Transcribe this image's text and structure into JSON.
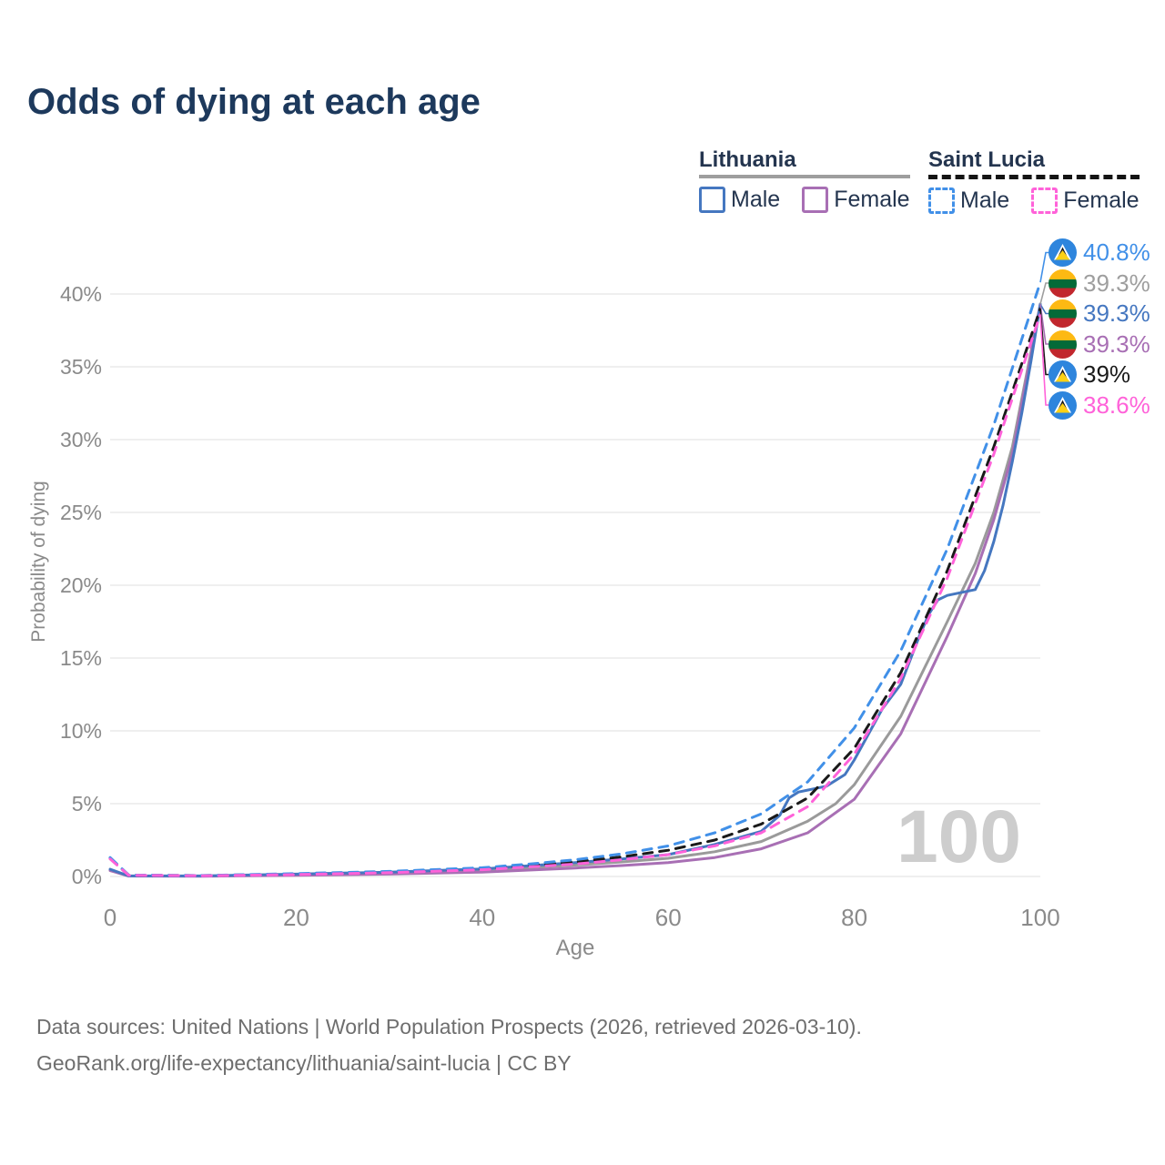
{
  "title": "Odds of dying at each age",
  "watermark": "100",
  "legend": {
    "groups": [
      {
        "country": "Lithuania",
        "line_style": "solid",
        "underline_color": "#9e9e9e",
        "items": [
          {
            "label": "Male",
            "series": "lt_male"
          },
          {
            "label": "Female",
            "series": "lt_female"
          }
        ]
      },
      {
        "country": "Saint Lucia",
        "line_style": "dashed",
        "underline_color": "#141414",
        "items": [
          {
            "label": "Male",
            "series": "sl_male"
          },
          {
            "label": "Female",
            "series": "sl_female"
          }
        ]
      }
    ]
  },
  "colors": {
    "title": "#1d395c",
    "legend_text": "#24354f",
    "axis_text": "#8a8a8a",
    "grid": "#e5e5e5",
    "watermark": "#cdcdcd",
    "footer": "#6e6e6e",
    "lt_male": "#4577c0",
    "lt_female": "#a86fb4",
    "lt_both": "#9a9a9a",
    "sl_male": "#4190e8",
    "sl_female": "#ff62d9",
    "sl_both": "#1a1a1a"
  },
  "chart_data": {
    "type": "line",
    "title": "Odds of dying at each age",
    "xlabel": "Age",
    "ylabel": "Probability of dying",
    "xlim": [
      0,
      100
    ],
    "ylim": [
      0,
      42.5
    ],
    "grid": "horizontal",
    "x_ticks": [
      0,
      20,
      40,
      60,
      80,
      100
    ],
    "y_ticks": [
      {
        "v": 0,
        "label": "0%"
      },
      {
        "v": 5,
        "label": "5%"
      },
      {
        "v": 10,
        "label": "10%"
      },
      {
        "v": 15,
        "label": "15%"
      },
      {
        "v": 20,
        "label": "20%"
      },
      {
        "v": 25,
        "label": "25%"
      },
      {
        "v": 30,
        "label": "30%"
      },
      {
        "v": 35,
        "label": "35%"
      },
      {
        "v": 40,
        "label": "40%"
      }
    ],
    "legend_position": "top-right",
    "series": [
      {
        "name": "lt_both",
        "country": "Lithuania",
        "sex": "both",
        "color": "#9a9a9a",
        "dash": false,
        "points": [
          [
            0,
            0.45
          ],
          [
            2,
            0.03
          ],
          [
            10,
            0.03
          ],
          [
            20,
            0.12
          ],
          [
            30,
            0.24
          ],
          [
            40,
            0.42
          ],
          [
            50,
            0.78
          ],
          [
            55,
            1.0
          ],
          [
            60,
            1.25
          ],
          [
            65,
            1.7
          ],
          [
            70,
            2.4
          ],
          [
            75,
            3.8
          ],
          [
            78,
            5.0
          ],
          [
            80,
            6.3
          ],
          [
            85,
            11
          ],
          [
            90,
            17.5
          ],
          [
            93,
            21.5
          ],
          [
            95,
            25
          ],
          [
            97,
            29.5
          ],
          [
            100,
            39.3
          ]
        ]
      },
      {
        "name": "lt_female",
        "country": "Lithuania",
        "sex": "female",
        "color": "#a86fb4",
        "dash": false,
        "points": [
          [
            0,
            0.4
          ],
          [
            2,
            0.03
          ],
          [
            10,
            0.02
          ],
          [
            20,
            0.08
          ],
          [
            30,
            0.16
          ],
          [
            40,
            0.3
          ],
          [
            50,
            0.58
          ],
          [
            55,
            0.75
          ],
          [
            60,
            0.95
          ],
          [
            65,
            1.3
          ],
          [
            70,
            1.9
          ],
          [
            75,
            3.0
          ],
          [
            80,
            5.3
          ],
          [
            85,
            9.8
          ],
          [
            90,
            16.5
          ],
          [
            93,
            20.8
          ],
          [
            95,
            24.5
          ],
          [
            97,
            29
          ],
          [
            100,
            39.3
          ]
        ]
      },
      {
        "name": "lt_male",
        "country": "Lithuania",
        "sex": "male",
        "color": "#4577c0",
        "dash": false,
        "points": [
          [
            0,
            0.5
          ],
          [
            2,
            0.04
          ],
          [
            10,
            0.04
          ],
          [
            20,
            0.16
          ],
          [
            30,
            0.3
          ],
          [
            40,
            0.52
          ],
          [
            50,
            0.95
          ],
          [
            55,
            1.2
          ],
          [
            60,
            1.5
          ],
          [
            65,
            2.2
          ],
          [
            70,
            3.1
          ],
          [
            72,
            4.2
          ],
          [
            73,
            5.4
          ],
          [
            74,
            5.8
          ],
          [
            77,
            6.2
          ],
          [
            79,
            7.0
          ],
          [
            80,
            8.0
          ],
          [
            83,
            11.5
          ],
          [
            85,
            13.2
          ],
          [
            87,
            16.5
          ],
          [
            88,
            18.0
          ],
          [
            89,
            19.0
          ],
          [
            90,
            19.3
          ],
          [
            93,
            19.7
          ],
          [
            94,
            21
          ],
          [
            95,
            23
          ],
          [
            96,
            25.5
          ],
          [
            97,
            28.5
          ],
          [
            98,
            31.8
          ],
          [
            99,
            35.4
          ],
          [
            100,
            39.3
          ]
        ]
      },
      {
        "name": "sl_both",
        "country": "Saint Lucia",
        "sex": "both",
        "color": "#1a1a1a",
        "dash": true,
        "points": [
          [
            0,
            1.25
          ],
          [
            2,
            0.09
          ],
          [
            10,
            0.06
          ],
          [
            20,
            0.17
          ],
          [
            30,
            0.3
          ],
          [
            40,
            0.52
          ],
          [
            50,
            1.0
          ],
          [
            55,
            1.35
          ],
          [
            60,
            1.8
          ],
          [
            65,
            2.5
          ],
          [
            70,
            3.6
          ],
          [
            75,
            5.4
          ],
          [
            80,
            8.8
          ],
          [
            85,
            14
          ],
          [
            90,
            21
          ],
          [
            95,
            29.5
          ],
          [
            100,
            39
          ]
        ]
      },
      {
        "name": "sl_male",
        "country": "Saint Lucia",
        "sex": "male",
        "color": "#4190e8",
        "dash": true,
        "points": [
          [
            0,
            1.3
          ],
          [
            2,
            0.1
          ],
          [
            10,
            0.07
          ],
          [
            20,
            0.2
          ],
          [
            30,
            0.35
          ],
          [
            40,
            0.6
          ],
          [
            45,
            0.85
          ],
          [
            50,
            1.15
          ],
          [
            55,
            1.55
          ],
          [
            60,
            2.1
          ],
          [
            65,
            3.0
          ],
          [
            70,
            4.3
          ],
          [
            75,
            6.5
          ],
          [
            80,
            10.2
          ],
          [
            85,
            15.5
          ],
          [
            90,
            22.5
          ],
          [
            95,
            31
          ],
          [
            100,
            40.8
          ]
        ]
      },
      {
        "name": "sl_female",
        "country": "Saint Lucia",
        "sex": "female",
        "color": "#ff62d9",
        "dash": true,
        "points": [
          [
            0,
            1.2
          ],
          [
            2,
            0.08
          ],
          [
            10,
            0.05
          ],
          [
            20,
            0.13
          ],
          [
            30,
            0.26
          ],
          [
            40,
            0.46
          ],
          [
            50,
            0.85
          ],
          [
            55,
            1.15
          ],
          [
            60,
            1.5
          ],
          [
            65,
            2.1
          ],
          [
            70,
            3.0
          ],
          [
            75,
            4.8
          ],
          [
            80,
            8.4
          ],
          [
            85,
            13.6
          ],
          [
            90,
            20.5
          ],
          [
            95,
            29
          ],
          [
            100,
            38.6
          ]
        ]
      }
    ],
    "end_labels": [
      {
        "value": "40.8%",
        "flag": "saint-lucia",
        "series": "sl_male",
        "color": "#4190e8"
      },
      {
        "value": "39.3%",
        "flag": "lithuania",
        "series": "lt_both",
        "color": "#9e9e9e"
      },
      {
        "value": "39.3%",
        "flag": "lithuania",
        "series": "lt_male",
        "color": "#4577c0"
      },
      {
        "value": "39.3%",
        "flag": "lithuania",
        "series": "lt_female",
        "color": "#a86fb4"
      },
      {
        "value": "39%",
        "flag": "saint-lucia",
        "series": "sl_both",
        "color": "#1a1a1a"
      },
      {
        "value": "38.6%",
        "flag": "saint-lucia",
        "series": "sl_female",
        "color": "#ff62d9"
      }
    ]
  },
  "footer": {
    "line1": "Data sources: United Nations | World Population Prospects (2026, retrieved 2026-03-10).",
    "line2": "GeoRank.org/life-expectancy/lithuania/saint-lucia | CC BY"
  }
}
